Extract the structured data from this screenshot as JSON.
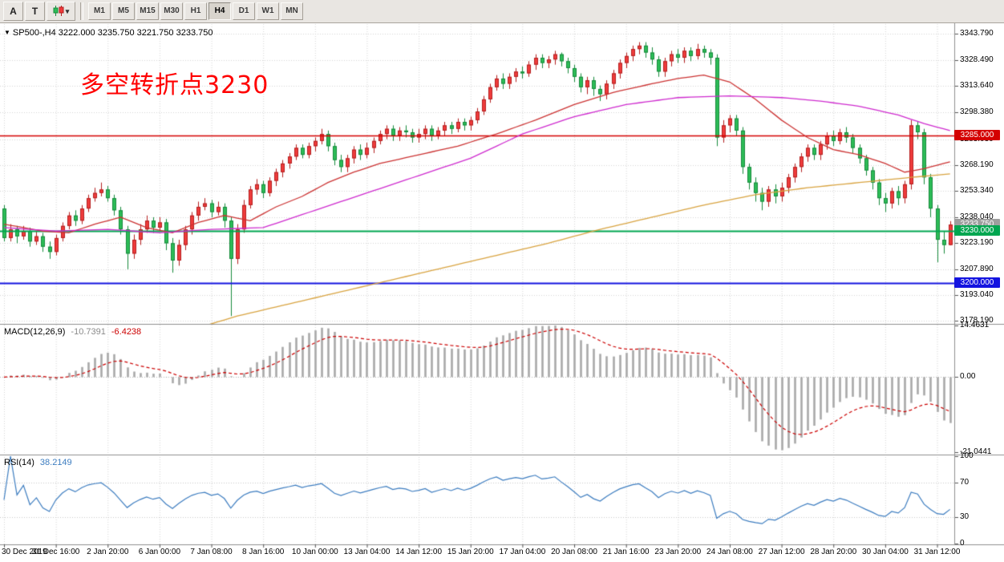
{
  "toolbar": {
    "buttons_left": [
      {
        "label": "A"
      },
      {
        "label": "T"
      }
    ],
    "style_button": {
      "arrow": "▾"
    },
    "timeframes": [
      {
        "label": "M1",
        "active": false
      },
      {
        "label": "M5",
        "active": false
      },
      {
        "label": "M15",
        "active": false
      },
      {
        "label": "M30",
        "active": false
      },
      {
        "label": "H1",
        "active": false
      },
      {
        "label": "H4",
        "active": true
      },
      {
        "label": "D1",
        "active": false
      },
      {
        "label": "W1",
        "active": false
      },
      {
        "label": "MN",
        "active": false
      }
    ]
  },
  "panels": {
    "symbol_line": {
      "collapse_icon": "▼",
      "text": "SP500-,H4 3222.000 3235.750 3221.750 3233.750"
    },
    "annotation": {
      "text": "多空转折点3230",
      "color": "#ff0000"
    },
    "macd_label": {
      "name": "MACD(12,26,9)",
      "main": "-10.7391",
      "signal": "-6.4238",
      "main_color": "#8a8a8a",
      "signal_color": "#cc0000"
    },
    "rsi_label": {
      "name": "RSI(14)",
      "value": "38.2149",
      "value_color": "#3d7dc0"
    }
  },
  "chart_data": {
    "type": "candlestick",
    "symbol": "SP500-",
    "timeframe": "H4",
    "ohlc_current": {
      "open": "3222.000",
      "high": "3235.750",
      "low": "3221.750",
      "close": "3233.750"
    },
    "ylim": [
      3176.93,
      3349.43
    ],
    "y_ticks": [
      "3343.790",
      "3328.490",
      "3313.640",
      "3298.380",
      "3283.030",
      "3268.190",
      "3253.340",
      "3238.040",
      "3223.190",
      "3207.890",
      "3193.040",
      "3178.190"
    ],
    "x_ticks": [
      {
        "label": "30 Dec 2019",
        "bar": 0
      },
      {
        "label": "31 Dec 16:00",
        "bar": 8
      },
      {
        "label": "2 Jan 20:00",
        "bar": 16
      },
      {
        "label": "6 Jan 00:00",
        "bar": 24
      },
      {
        "label": "7 Jan 08:00",
        "bar": 32
      },
      {
        "label": "8 Jan 16:00",
        "bar": 40
      },
      {
        "label": "10 Jan 00:00",
        "bar": 48
      },
      {
        "label": "13 Jan 04:00",
        "bar": 56
      },
      {
        "label": "14 Jan 12:00",
        "bar": 64
      },
      {
        "label": "15 Jan 20:00",
        "bar": 72
      },
      {
        "label": "17 Jan 04:00",
        "bar": 80
      },
      {
        "label": "20 Jan 08:00",
        "bar": 88
      },
      {
        "label": "21 Jan 16:00",
        "bar": 96
      },
      {
        "label": "23 Jan 20:00",
        "bar": 104
      },
      {
        "label": "24 Jan 08:00",
        "bar": 112
      },
      {
        "label": "27 Jan 12:00",
        "bar": 120
      },
      {
        "label": "28 Jan 20:00",
        "bar": 128
      },
      {
        "label": "30 Jan 04:00",
        "bar": 136
      },
      {
        "label": "31 Jan 12:00",
        "bar": 144
      }
    ],
    "colors": {
      "up": "#ef3b3b",
      "up_border": "#b32020",
      "down": "#2dbd57",
      "down_border": "#168a3c",
      "grid": "#d6d6d6",
      "hist": "#a9a9a9",
      "signal": "#cc0000",
      "rsi": "#3d7dc0"
    },
    "hlines": [
      {
        "price": 3285.0,
        "label": "3285.000",
        "color": "#d40000",
        "width": 1.4
      },
      {
        "price": 3230.0,
        "label": "3230.000",
        "color": "#00a650",
        "width": 2
      },
      {
        "price": 3200.0,
        "label": "3200.000",
        "color": "#1414e0",
        "width": 2
      }
    ],
    "price_tag": {
      "price": 3233.75,
      "label": "3233.750",
      "color": "#9e9e9e"
    },
    "ma_lines": [
      {
        "name": "ma-fast-red",
        "color": "#cc3333",
        "points": [
          [
            0,
            3234
          ],
          [
            6,
            3230
          ],
          [
            10,
            3229
          ],
          [
            14,
            3234
          ],
          [
            18,
            3238
          ],
          [
            22,
            3232
          ],
          [
            26,
            3229
          ],
          [
            30,
            3235
          ],
          [
            34,
            3239
          ],
          [
            38,
            3236
          ],
          [
            42,
            3244
          ],
          [
            46,
            3250
          ],
          [
            50,
            3258
          ],
          [
            54,
            3264
          ],
          [
            58,
            3269
          ],
          [
            64,
            3274
          ],
          [
            70,
            3279
          ],
          [
            76,
            3286
          ],
          [
            82,
            3294
          ],
          [
            88,
            3303
          ],
          [
            94,
            3310
          ],
          [
            100,
            3315
          ],
          [
            104,
            3318
          ],
          [
            108,
            3320
          ],
          [
            112,
            3316
          ],
          [
            116,
            3306
          ],
          [
            120,
            3294
          ],
          [
            124,
            3284
          ],
          [
            128,
            3277
          ],
          [
            132,
            3274
          ],
          [
            136,
            3269
          ],
          [
            139,
            3264
          ],
          [
            142,
            3266
          ],
          [
            146,
            3270
          ]
        ]
      },
      {
        "name": "ma-mid-magenta",
        "color": "#cf2bcf",
        "points": [
          [
            0,
            3232
          ],
          [
            8,
            3230
          ],
          [
            16,
            3231
          ],
          [
            24,
            3229
          ],
          [
            32,
            3231
          ],
          [
            40,
            3232
          ],
          [
            48,
            3242
          ],
          [
            56,
            3252
          ],
          [
            64,
            3262
          ],
          [
            72,
            3272
          ],
          [
            80,
            3286
          ],
          [
            88,
            3296
          ],
          [
            96,
            3303
          ],
          [
            104,
            3307
          ],
          [
            112,
            3308
          ],
          [
            120,
            3307
          ],
          [
            126,
            3305
          ],
          [
            132,
            3302
          ],
          [
            138,
            3297
          ],
          [
            142,
            3292
          ],
          [
            146,
            3288
          ]
        ]
      },
      {
        "name": "ma-slow-orange",
        "color": "#d9a441",
        "points": [
          [
            0,
            3110
          ],
          [
            10,
            3136
          ],
          [
            20,
            3158
          ],
          [
            28,
            3172
          ],
          [
            36,
            3181
          ],
          [
            44,
            3188
          ],
          [
            52,
            3195
          ],
          [
            60,
            3202
          ],
          [
            68,
            3209
          ],
          [
            76,
            3216
          ],
          [
            84,
            3223
          ],
          [
            92,
            3231
          ],
          [
            100,
            3238
          ],
          [
            108,
            3245
          ],
          [
            116,
            3251
          ],
          [
            124,
            3255
          ],
          [
            132,
            3258
          ],
          [
            140,
            3261
          ],
          [
            146,
            3263
          ]
        ]
      }
    ],
    "macd": {
      "params": [
        12,
        26,
        9
      ],
      "ylim": [
        -21.0441,
        14.4631
      ],
      "y_ticks": [
        {
          "text": "14.4631",
          "value": 14.4631
        },
        {
          "text": "0.00",
          "value": 0
        },
        {
          "text": "-21.0441",
          "value": -21.0441
        }
      ]
    },
    "rsi": {
      "period": 14,
      "ylim": [
        0,
        100
      ],
      "levels": [
        70,
        30
      ],
      "y_ticks": [
        {
          "text": "100",
          "value": 100
        },
        {
          "text": "70",
          "value": 70
        },
        {
          "text": "30",
          "value": 30
        },
        {
          "text": "0",
          "value": 0
        }
      ]
    },
    "candles": [
      [
        3243,
        3245,
        3224,
        3226
      ],
      [
        3226,
        3234,
        3224,
        3231
      ],
      [
        3231,
        3233,
        3223,
        3227
      ],
      [
        3227,
        3233,
        3225,
        3230
      ],
      [
        3230,
        3232,
        3221,
        3224
      ],
      [
        3224,
        3230,
        3222,
        3227
      ],
      [
        3227,
        3229,
        3218,
        3221
      ],
      [
        3221,
        3224,
        3214,
        3218
      ],
      [
        3218,
        3228,
        3216,
        3226
      ],
      [
        3226,
        3235,
        3224,
        3233
      ],
      [
        3233,
        3241,
        3231,
        3239
      ],
      [
        3239,
        3242,
        3233,
        3236
      ],
      [
        3236,
        3245,
        3234,
        3243
      ],
      [
        3243,
        3251,
        3241,
        3249
      ],
      [
        3249,
        3255,
        3247,
        3252
      ],
      [
        3252,
        3258,
        3250,
        3254
      ],
      [
        3254,
        3256,
        3247,
        3249
      ],
      [
        3249,
        3251,
        3239,
        3242
      ],
      [
        3242,
        3244,
        3228,
        3231
      ],
      [
        3231,
        3233,
        3208,
        3217
      ],
      [
        3217,
        3228,
        3214,
        3225
      ],
      [
        3225,
        3234,
        3222,
        3231
      ],
      [
        3231,
        3239,
        3229,
        3236
      ],
      [
        3236,
        3238,
        3229,
        3232
      ],
      [
        3232,
        3238,
        3230,
        3235
      ],
      [
        3235,
        3237,
        3219,
        3223
      ],
      [
        3223,
        3226,
        3206,
        3213
      ],
      [
        3213,
        3225,
        3210,
        3222
      ],
      [
        3222,
        3233,
        3219,
        3231
      ],
      [
        3231,
        3241,
        3228,
        3239
      ],
      [
        3239,
        3247,
        3236,
        3244
      ],
      [
        3244,
        3249,
        3242,
        3246
      ],
      [
        3246,
        3248,
        3238,
        3241
      ],
      [
        3241,
        3247,
        3239,
        3244
      ],
      [
        3244,
        3246,
        3232,
        3236
      ],
      [
        3236,
        3238,
        3181,
        3214
      ],
      [
        3214,
        3234,
        3211,
        3231
      ],
      [
        3231,
        3248,
        3229,
        3245
      ],
      [
        3245,
        3256,
        3243,
        3254
      ],
      [
        3254,
        3260,
        3251,
        3257
      ],
      [
        3257,
        3259,
        3249,
        3252
      ],
      [
        3252,
        3261,
        3250,
        3259
      ],
      [
        3259,
        3266,
        3256,
        3264
      ],
      [
        3264,
        3271,
        3261,
        3269
      ],
      [
        3269,
        3275,
        3266,
        3273
      ],
      [
        3273,
        3280,
        3271,
        3278
      ],
      [
        3278,
        3280,
        3272,
        3274
      ],
      [
        3274,
        3281,
        3272,
        3279
      ],
      [
        3279,
        3284,
        3276,
        3282
      ],
      [
        3282,
        3289,
        3280,
        3286
      ],
      [
        3286,
        3288,
        3276,
        3279
      ],
      [
        3279,
        3281,
        3268,
        3271
      ],
      [
        3271,
        3274,
        3264,
        3267
      ],
      [
        3267,
        3274,
        3264,
        3272
      ],
      [
        3272,
        3279,
        3269,
        3277
      ],
      [
        3277,
        3280,
        3271,
        3274
      ],
      [
        3274,
        3281,
        3272,
        3278
      ],
      [
        3278,
        3284,
        3275,
        3282
      ],
      [
        3282,
        3288,
        3280,
        3286
      ],
      [
        3286,
        3291,
        3283,
        3289
      ],
      [
        3289,
        3291,
        3282,
        3285
      ],
      [
        3285,
        3290,
        3282,
        3288
      ],
      [
        3288,
        3291,
        3284,
        3287
      ],
      [
        3287,
        3289,
        3281,
        3284
      ],
      [
        3284,
        3289,
        3281,
        3286
      ],
      [
        3286,
        3291,
        3283,
        3289
      ],
      [
        3289,
        3291,
        3282,
        3285
      ],
      [
        3285,
        3290,
        3283,
        3288
      ],
      [
        3288,
        3293,
        3285,
        3291
      ],
      [
        3291,
        3293,
        3286,
        3289
      ],
      [
        3289,
        3295,
        3287,
        3293
      ],
      [
        3293,
        3295,
        3288,
        3291
      ],
      [
        3291,
        3296,
        3288,
        3294
      ],
      [
        3294,
        3301,
        3292,
        3299
      ],
      [
        3299,
        3308,
        3297,
        3306
      ],
      [
        3306,
        3315,
        3304,
        3313
      ],
      [
        3313,
        3320,
        3311,
        3318
      ],
      [
        3318,
        3321,
        3312,
        3315
      ],
      [
        3315,
        3321,
        3312,
        3319
      ],
      [
        3319,
        3324,
        3316,
        3322
      ],
      [
        3322,
        3325,
        3318,
        3321
      ],
      [
        3321,
        3328,
        3319,
        3326
      ],
      [
        3326,
        3332,
        3323,
        3330
      ],
      [
        3330,
        3332,
        3324,
        3327
      ],
      [
        3327,
        3331,
        3324,
        3329
      ],
      [
        3329,
        3334,
        3326,
        3332
      ],
      [
        3332,
        3333,
        3325,
        3328
      ],
      [
        3328,
        3330,
        3321,
        3324
      ],
      [
        3324,
        3326,
        3316,
        3319
      ],
      [
        3319,
        3321,
        3310,
        3313
      ],
      [
        3313,
        3319,
        3309,
        3317
      ],
      [
        3317,
        3319,
        3308,
        3312
      ],
      [
        3312,
        3314,
        3305,
        3309
      ],
      [
        3309,
        3317,
        3306,
        3315
      ],
      [
        3315,
        3323,
        3312,
        3321
      ],
      [
        3321,
        3329,
        3318,
        3327
      ],
      [
        3327,
        3333,
        3324,
        3331
      ],
      [
        3331,
        3337,
        3328,
        3335
      ],
      [
        3335,
        3339,
        3332,
        3337
      ],
      [
        3337,
        3339,
        3330,
        3333
      ],
      [
        3333,
        3336,
        3326,
        3329
      ],
      [
        3329,
        3331,
        3319,
        3322
      ],
      [
        3322,
        3330,
        3319,
        3328
      ],
      [
        3328,
        3334,
        3325,
        3332
      ],
      [
        3332,
        3335,
        3327,
        3330
      ],
      [
        3330,
        3336,
        3327,
        3334
      ],
      [
        3334,
        3336,
        3328,
        3331
      ],
      [
        3331,
        3338,
        3329,
        3335
      ],
      [
        3335,
        3337,
        3330,
        3333
      ],
      [
        3333,
        3335,
        3326,
        3330
      ],
      [
        3330,
        3332,
        3279,
        3284
      ],
      [
        3284,
        3294,
        3281,
        3291
      ],
      [
        3291,
        3297,
        3287,
        3295
      ],
      [
        3295,
        3297,
        3285,
        3288
      ],
      [
        3288,
        3290,
        3263,
        3267
      ],
      [
        3267,
        3269,
        3254,
        3258
      ],
      [
        3258,
        3261,
        3247,
        3252
      ],
      [
        3252,
        3255,
        3242,
        3247
      ],
      [
        3247,
        3256,
        3244,
        3254
      ],
      [
        3254,
        3257,
        3246,
        3250
      ],
      [
        3250,
        3258,
        3247,
        3255
      ],
      [
        3255,
        3263,
        3252,
        3261
      ],
      [
        3261,
        3269,
        3258,
        3267
      ],
      [
        3267,
        3275,
        3264,
        3273
      ],
      [
        3273,
        3280,
        3270,
        3278
      ],
      [
        3278,
        3280,
        3271,
        3274
      ],
      [
        3274,
        3282,
        3271,
        3280
      ],
      [
        3280,
        3287,
        3277,
        3285
      ],
      [
        3285,
        3288,
        3279,
        3282
      ],
      [
        3282,
        3289,
        3280,
        3287
      ],
      [
        3287,
        3290,
        3281,
        3284
      ],
      [
        3284,
        3286,
        3275,
        3278
      ],
      [
        3278,
        3280,
        3269,
        3272
      ],
      [
        3272,
        3274,
        3262,
        3265
      ],
      [
        3265,
        3267,
        3254,
        3258
      ],
      [
        3258,
        3260,
        3245,
        3249
      ],
      [
        3249,
        3252,
        3241,
        3246
      ],
      [
        3246,
        3255,
        3243,
        3253
      ],
      [
        3253,
        3256,
        3245,
        3249
      ],
      [
        3249,
        3259,
        3246,
        3257
      ],
      [
        3257,
        3294,
        3254,
        3291
      ],
      [
        3291,
        3293,
        3283,
        3287
      ],
      [
        3287,
        3289,
        3257,
        3261
      ],
      [
        3261,
        3263,
        3238,
        3243
      ],
      [
        3243,
        3245,
        3212,
        3225
      ],
      [
        3225,
        3230,
        3217,
        3222
      ],
      [
        3222,
        3235.75,
        3221.75,
        3233.75
      ]
    ]
  }
}
